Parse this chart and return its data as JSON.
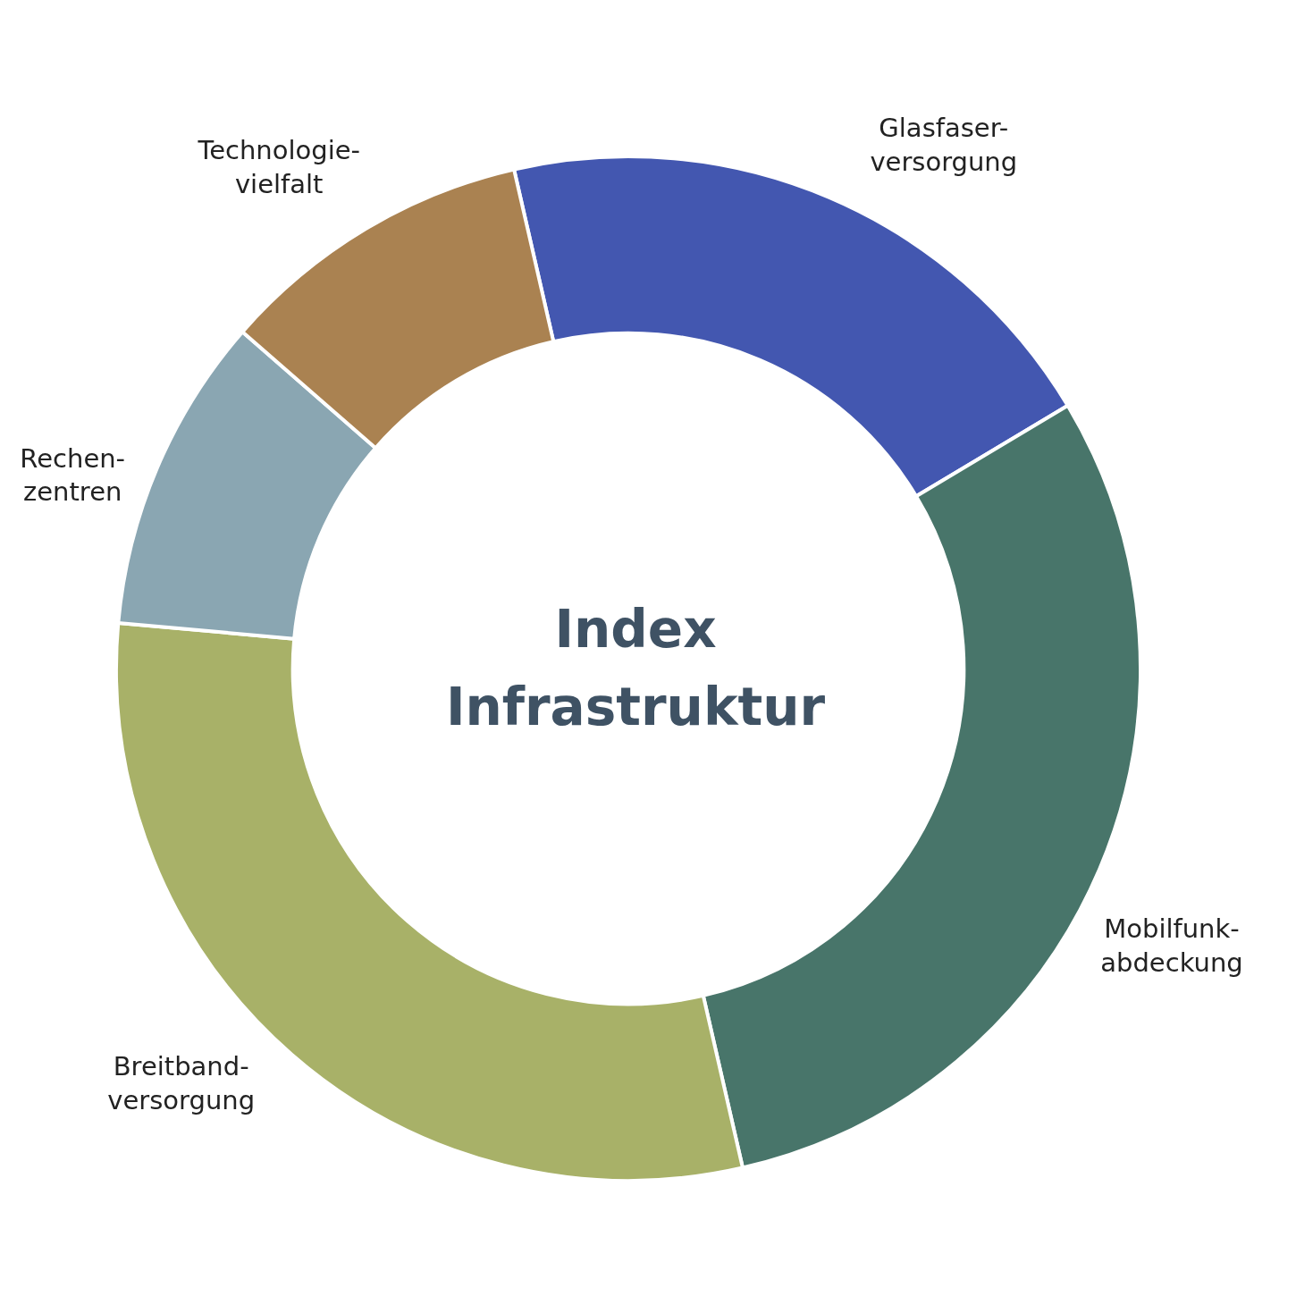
{
  "chart_data": {
    "type": "donut",
    "title": "Index\nInfrastruktur",
    "categories": [
      "Glasfaser-\nversorgung",
      "Mobilfunk-\nabdeckung",
      "Breitband-\nversorgung",
      "Rechen-\nzentren",
      "Technologie-\nvielfalt"
    ],
    "values": [
      20,
      30,
      30,
      10,
      10
    ],
    "colors": [
      "#4357b0",
      "#48756a",
      "#a8b168",
      "#8aa6b2",
      "#aa8251"
    ],
    "legend": false
  }
}
